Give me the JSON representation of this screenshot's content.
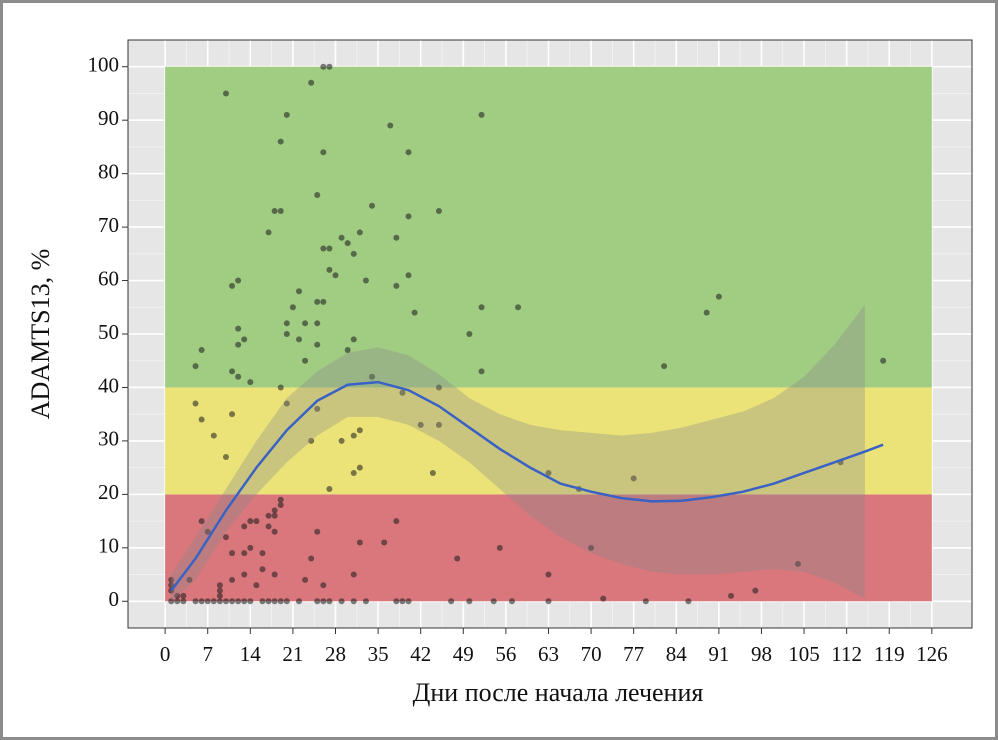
{
  "chart_data": {
    "type": "scatter",
    "x_label": "Дни после начала лечения",
    "y_label": "ADAMTS13, %",
    "xlim": [
      -6.1,
      132.6
    ],
    "ylim": [
      -5,
      105
    ],
    "xticks": [
      0,
      7,
      14,
      21,
      28,
      35,
      42,
      49,
      56,
      63,
      70,
      77,
      84,
      91,
      98,
      105,
      112,
      119,
      126
    ],
    "yticks": [
      0,
      10,
      20,
      30,
      40,
      50,
      60,
      70,
      80,
      90,
      100
    ],
    "grid": true,
    "bands_xrange": [
      0,
      126
    ],
    "bands": [
      {
        "from": 0,
        "to": 20,
        "color": "#d9777c"
      },
      {
        "from": 20,
        "to": 40,
        "color": "#ebe378"
      },
      {
        "from": 40,
        "to": 100,
        "color": "#a1cd83"
      }
    ],
    "points_color": "#1a1a1a",
    "x": [
      1,
      2,
      3,
      5,
      6,
      7,
      8,
      9,
      10,
      11,
      12,
      13,
      14,
      16,
      17,
      18,
      19,
      20,
      22,
      25,
      26,
      27,
      29,
      31,
      33,
      38,
      39,
      40,
      47,
      50,
      54,
      57,
      63,
      79,
      86,
      1,
      1,
      1,
      2,
      3,
      4,
      5,
      6,
      5,
      6,
      6,
      7,
      8,
      9,
      9,
      9,
      10,
      10,
      10,
      11,
      11,
      11,
      11,
      11,
      12,
      12,
      12,
      12,
      13,
      13,
      13,
      13,
      14,
      14,
      14,
      15,
      15,
      16,
      16,
      17,
      17,
      17,
      18,
      18,
      18,
      18,
      18,
      19,
      19,
      19,
      19,
      19,
      20,
      20,
      20,
      20,
      21,
      22,
      22,
      23,
      23,
      24,
      24,
      24,
      23,
      25,
      25,
      25,
      25,
      25,
      25,
      26,
      26,
      26,
      26,
      26,
      27,
      27,
      27,
      27,
      28,
      29,
      29,
      30,
      30,
      31,
      31,
      31,
      31,
      31,
      32,
      32,
      32,
      32,
      33,
      34,
      34,
      36,
      37,
      38,
      38,
      38,
      39,
      40,
      40,
      40,
      41,
      42,
      44,
      45,
      45,
      45,
      48,
      50,
      52,
      52,
      52,
      55,
      58,
      63,
      63,
      68,
      70,
      72,
      77,
      82,
      89,
      91,
      93,
      97,
      104,
      111,
      118
    ],
    "y": [
      0,
      0,
      0,
      0,
      0,
      0,
      0,
      0,
      0,
      0,
      0,
      0,
      0,
      0,
      0,
      0,
      0,
      0,
      0,
      0,
      0,
      0,
      0,
      0,
      0,
      0,
      0,
      0,
      0,
      0,
      0,
      0,
      0,
      0,
      0,
      4,
      3,
      2,
      1,
      1,
      4,
      44,
      47,
      37,
      34,
      15,
      13,
      31,
      3,
      2,
      1,
      95,
      27,
      12,
      59,
      43,
      35,
      9,
      4,
      60,
      51,
      48,
      42,
      49,
      14,
      9,
      5,
      41,
      15,
      10,
      15,
      3,
      9,
      6,
      69,
      16,
      14,
      73,
      17,
      16,
      13,
      5,
      73,
      86,
      40,
      19,
      18,
      91,
      52,
      50,
      37,
      55,
      58,
      49,
      52,
      45,
      97,
      30,
      8,
      4,
      76,
      56,
      52,
      48,
      36,
      13,
      84,
      66,
      56,
      3,
      100,
      100,
      66,
      62,
      21,
      61,
      68,
      30,
      67,
      47,
      65,
      49,
      31,
      24,
      5,
      69,
      32,
      25,
      11,
      60,
      74,
      42,
      11,
      89,
      68,
      59,
      15,
      39,
      84,
      72,
      61,
      54,
      33,
      24,
      73,
      40,
      33,
      8,
      50,
      91,
      55,
      43,
      10,
      55,
      24,
      5,
      21,
      10,
      0.5,
      23,
      44,
      54,
      57,
      1,
      2,
      7,
      26,
      45
    ],
    "smooth": {
      "color": "#3a62c4",
      "ribbon_color": "#8a8a8a",
      "x": [
        1,
        5,
        10,
        15,
        20,
        25,
        30,
        35,
        40,
        45,
        50,
        55,
        60,
        65,
        70,
        75,
        80,
        85,
        90,
        95,
        100,
        105,
        110,
        115,
        118
      ],
      "y": [
        2,
        8,
        17,
        25,
        32,
        37.5,
        40.5,
        41,
        39.5,
        36.5,
        32.5,
        28.5,
        25,
        22,
        20.5,
        19.3,
        18.7,
        18.8,
        19.5,
        20.5,
        22,
        24,
        26,
        28,
        29.3
      ],
      "lower": [
        0,
        4,
        13,
        20,
        26,
        31,
        34.5,
        34.5,
        33,
        30,
        26,
        21,
        16,
        12,
        9,
        7,
        5.5,
        5,
        5,
        5.5,
        6,
        5.5,
        3.5,
        0.5,
        null
      ],
      "upper": [
        5,
        12,
        21,
        30,
        38,
        43,
        46.5,
        47.5,
        46,
        42.5,
        38,
        35,
        33,
        32,
        31.5,
        31,
        31.5,
        32.5,
        34,
        35.5,
        38,
        42,
        48,
        55.5,
        null
      ]
    }
  }
}
